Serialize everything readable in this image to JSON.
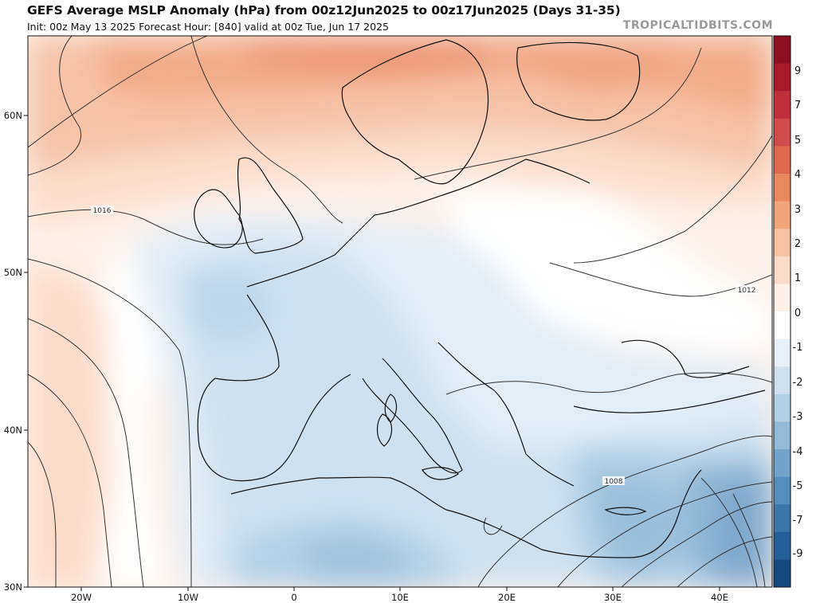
{
  "header": {
    "title": "GEFS Average MSLP Anomaly (hPa) from 00z12Jun2025 to 00z17Jun2025 (Days 31-35)",
    "subtitle": "Init: 00z May 13 2025   Forecast Hour: [840]   valid at 00z Tue, Jun 17 2025",
    "brand": "TROPICALTIDBITS.COM"
  },
  "axes": {
    "lat_labels": [
      "60N",
      "50N",
      "40N",
      "30N"
    ],
    "lon_labels": [
      "20W",
      "10W",
      "0",
      "10E",
      "20E",
      "30E",
      "40E"
    ]
  },
  "contour_labels": [
    "1016",
    "1012",
    "1008"
  ],
  "colorbar": {
    "labels": [
      "9",
      "7",
      "5",
      "4",
      "3",
      "2",
      "1",
      "0",
      "-1",
      "-2",
      "-3",
      "-4",
      "-5",
      "-7",
      "-9"
    ],
    "colors": [
      "#8e0f23",
      "#a8192c",
      "#c0303a",
      "#d24a4a",
      "#e0684f",
      "#e9885f",
      "#f1a57a",
      "#f7c2a2",
      "#fbdcca",
      "#fdf0e8",
      "#ffffff",
      "#e7f0f7",
      "#cfe1ef",
      "#b3d0e5",
      "#93bbd9",
      "#72a4cb",
      "#558dbc",
      "#3b76ab",
      "#265f97",
      "#15497f"
    ]
  }
}
